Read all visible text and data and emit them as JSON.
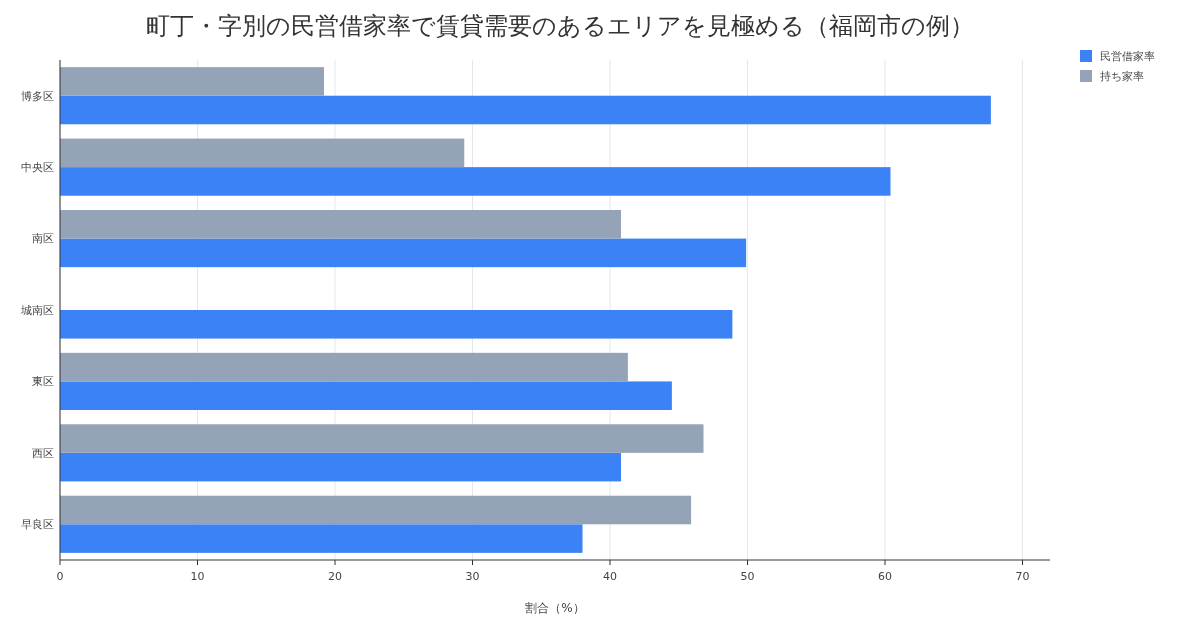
{
  "chart_data": {
    "type": "bar",
    "orientation": "horizontal",
    "title": "町丁・字別の民営借家率で賃貸需要のあるエリアを見極める（福岡市の例）",
    "xlabel": "割合（%）",
    "categories": [
      "博多区",
      "中央区",
      "南区",
      "城南区",
      "東区",
      "西区",
      "早良区"
    ],
    "series": [
      {
        "name": "民営借家率",
        "color": "#3b82f6",
        "values": [
          67.7,
          60.4,
          49.9,
          48.9,
          44.5,
          40.8,
          38.0
        ]
      },
      {
        "name": "持ち家率",
        "color": "#94a3b8",
        "values": [
          19.2,
          29.4,
          40.8,
          null,
          41.3,
          46.8,
          45.9
        ]
      }
    ],
    "xlim": [
      0,
      72
    ],
    "xticks": [
      0,
      10,
      20,
      30,
      40,
      50,
      60,
      70
    ],
    "grid": "x",
    "legend": "top right"
  }
}
